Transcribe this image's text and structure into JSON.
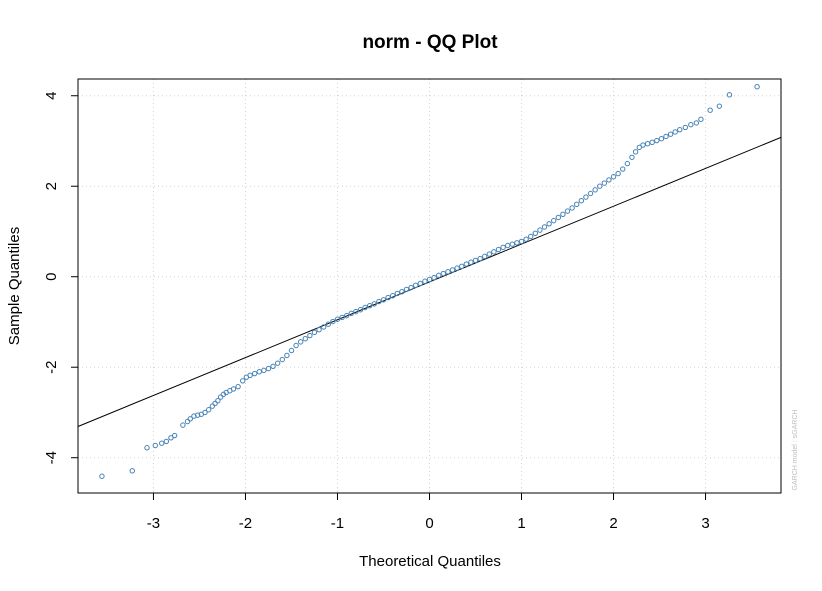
{
  "chart_data": {
    "type": "scatter",
    "title": "norm - QQ Plot",
    "xlabel": "Theoretical Quantiles",
    "ylabel": "Sample Quantiles",
    "side_note": "GARCH model : sGARCH",
    "xlim": [
      -3.82,
      3.82
    ],
    "ylim": [
      -4.78,
      4.37
    ],
    "x_ticks": [
      -3,
      -2,
      -1,
      0,
      1,
      2,
      3
    ],
    "x_tick_labels": [
      "-3",
      "-2",
      "-1",
      "0",
      "1",
      "2",
      "3"
    ],
    "y_ticks": [
      -4,
      -2,
      0,
      2,
      4
    ],
    "y_tick_labels": [
      "-4",
      "-2",
      "0",
      "2",
      "4"
    ],
    "grid": true,
    "point_color": "#4682b4",
    "reference_line": {
      "color": "#000000",
      "x": [
        -3.82,
        3.82
      ],
      "y": [
        -3.31,
        3.08
      ]
    },
    "series": [
      {
        "points": [
          [
            -3.56,
            -4.41
          ],
          [
            -3.23,
            -4.29
          ],
          [
            -3.07,
            -3.78
          ],
          [
            -2.98,
            -3.73
          ],
          [
            -2.91,
            -3.68
          ],
          [
            -2.86,
            -3.64
          ],
          [
            -2.81,
            -3.56
          ],
          [
            -2.77,
            -3.51
          ],
          [
            -2.68,
            -3.28
          ],
          [
            -2.63,
            -3.2
          ],
          [
            -2.6,
            -3.14
          ],
          [
            -2.56,
            -3.08
          ],
          [
            -2.52,
            -3.06
          ],
          [
            -2.48,
            -3.04
          ],
          [
            -2.44,
            -3.0
          ],
          [
            -2.4,
            -2.94
          ],
          [
            -2.36,
            -2.86
          ],
          [
            -2.33,
            -2.8
          ],
          [
            -2.3,
            -2.74
          ],
          [
            -2.27,
            -2.66
          ],
          [
            -2.24,
            -2.6
          ],
          [
            -2.21,
            -2.56
          ],
          [
            -2.17,
            -2.52
          ],
          [
            -2.13,
            -2.48
          ],
          [
            -2.08,
            -2.43
          ],
          [
            -2.03,
            -2.3
          ],
          [
            -1.99,
            -2.22
          ],
          [
            -1.95,
            -2.18
          ],
          [
            -1.9,
            -2.14
          ],
          [
            -1.85,
            -2.1
          ],
          [
            -1.8,
            -2.07
          ],
          [
            -1.75,
            -2.03
          ],
          [
            -1.7,
            -1.98
          ],
          [
            -1.65,
            -1.91
          ],
          [
            -1.6,
            -1.83
          ],
          [
            -1.55,
            -1.74
          ],
          [
            -1.5,
            -1.63
          ],
          [
            -1.45,
            -1.52
          ],
          [
            -1.4,
            -1.44
          ],
          [
            -1.35,
            -1.37
          ],
          [
            -1.3,
            -1.3
          ],
          [
            -1.25,
            -1.23
          ],
          [
            -1.2,
            -1.17
          ],
          [
            -1.15,
            -1.11
          ],
          [
            -1.1,
            -1.05
          ],
          [
            -1.05,
            -0.99
          ],
          [
            -1.0,
            -0.94
          ],
          [
            -0.95,
            -0.9
          ],
          [
            -0.9,
            -0.86
          ],
          [
            -0.85,
            -0.81
          ],
          [
            -0.8,
            -0.77
          ],
          [
            -0.75,
            -0.73
          ],
          [
            -0.7,
            -0.68
          ],
          [
            -0.65,
            -0.64
          ],
          [
            -0.6,
            -0.6
          ],
          [
            -0.55,
            -0.55
          ],
          [
            -0.5,
            -0.51
          ],
          [
            -0.45,
            -0.46
          ],
          [
            -0.4,
            -0.42
          ],
          [
            -0.35,
            -0.37
          ],
          [
            -0.3,
            -0.33
          ],
          [
            -0.25,
            -0.28
          ],
          [
            -0.2,
            -0.24
          ],
          [
            -0.15,
            -0.19
          ],
          [
            -0.1,
            -0.15
          ],
          [
            -0.05,
            -0.1
          ],
          [
            0.0,
            -0.06
          ],
          [
            0.05,
            -0.02
          ],
          [
            0.1,
            0.03
          ],
          [
            0.15,
            0.07
          ],
          [
            0.2,
            0.11
          ],
          [
            0.25,
            0.15
          ],
          [
            0.3,
            0.19
          ],
          [
            0.35,
            0.23
          ],
          [
            0.4,
            0.28
          ],
          [
            0.45,
            0.32
          ],
          [
            0.5,
            0.36
          ],
          [
            0.55,
            0.4
          ],
          [
            0.6,
            0.45
          ],
          [
            0.65,
            0.5
          ],
          [
            0.7,
            0.55
          ],
          [
            0.75,
            0.6
          ],
          [
            0.8,
            0.65
          ],
          [
            0.85,
            0.69
          ],
          [
            0.9,
            0.72
          ],
          [
            0.95,
            0.75
          ],
          [
            1.0,
            0.78
          ],
          [
            1.05,
            0.83
          ],
          [
            1.1,
            0.89
          ],
          [
            1.15,
            0.96
          ],
          [
            1.2,
            1.03
          ],
          [
            1.25,
            1.1
          ],
          [
            1.3,
            1.17
          ],
          [
            1.35,
            1.24
          ],
          [
            1.4,
            1.31
          ],
          [
            1.45,
            1.38
          ],
          [
            1.5,
            1.45
          ],
          [
            1.55,
            1.52
          ],
          [
            1.6,
            1.6
          ],
          [
            1.65,
            1.68
          ],
          [
            1.7,
            1.76
          ],
          [
            1.75,
            1.84
          ],
          [
            1.8,
            1.92
          ],
          [
            1.85,
            2.0
          ],
          [
            1.9,
            2.07
          ],
          [
            1.95,
            2.14
          ],
          [
            2.0,
            2.21
          ],
          [
            2.05,
            2.28
          ],
          [
            2.1,
            2.38
          ],
          [
            2.15,
            2.5
          ],
          [
            2.2,
            2.64
          ],
          [
            2.24,
            2.76
          ],
          [
            2.28,
            2.86
          ],
          [
            2.32,
            2.91
          ],
          [
            2.37,
            2.94
          ],
          [
            2.42,
            2.97
          ],
          [
            2.47,
            3.01
          ],
          [
            2.52,
            3.05
          ],
          [
            2.57,
            3.1
          ],
          [
            2.62,
            3.15
          ],
          [
            2.67,
            3.2
          ],
          [
            2.72,
            3.25
          ],
          [
            2.78,
            3.3
          ],
          [
            2.84,
            3.36
          ],
          [
            2.9,
            3.4
          ],
          [
            2.95,
            3.48
          ],
          [
            3.05,
            3.68
          ],
          [
            3.15,
            3.77
          ],
          [
            3.26,
            4.02
          ],
          [
            3.56,
            4.2
          ]
        ]
      }
    ]
  }
}
